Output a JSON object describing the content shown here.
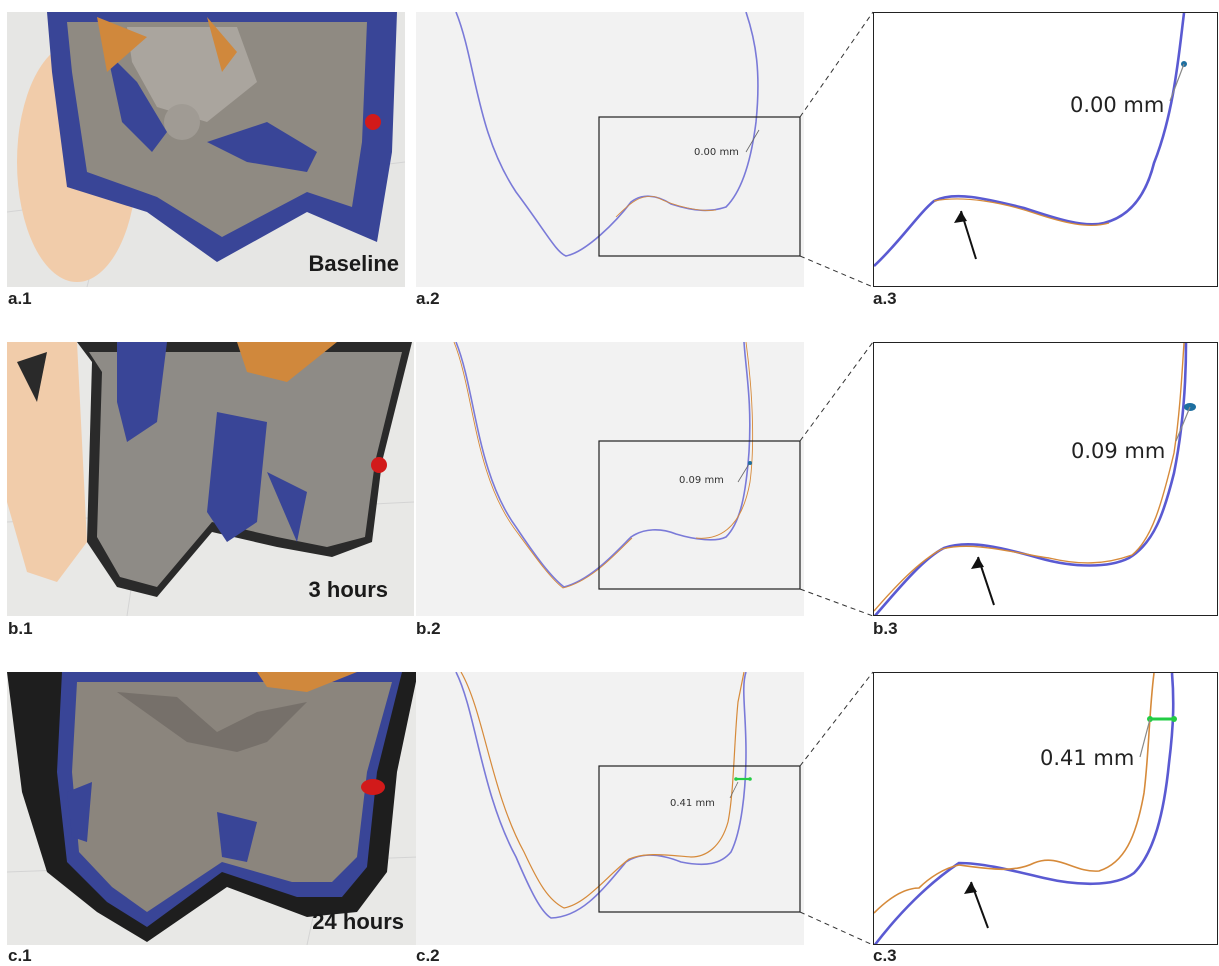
{
  "rows": [
    {
      "time_label": "Baseline",
      "measurement": "0.00 mm",
      "labels": {
        "photo": "a.1",
        "section": "a.2",
        "zoom": "a.3"
      }
    },
    {
      "time_label": "3 hours",
      "measurement": "0.09 mm",
      "labels": {
        "photo": "b.1",
        "section": "b.2",
        "zoom": "b.3"
      }
    },
    {
      "time_label": "24 hours",
      "measurement": "0.41 mm",
      "labels": {
        "photo": "c.1",
        "section": "c.2",
        "zoom": "c.3"
      }
    }
  ],
  "colors": {
    "reference": "#6a6adf",
    "test": "#e0913a",
    "scan_blue": "#3a4596",
    "gauge": "#22cc44",
    "marker": "#d21a1a"
  }
}
